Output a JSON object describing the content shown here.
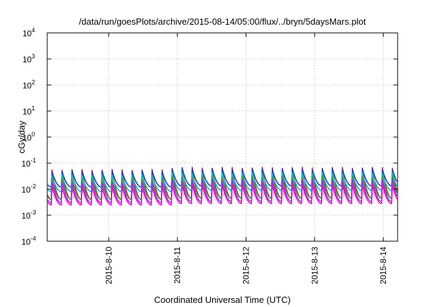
{
  "chart_data": {
    "type": "line",
    "title": "/data/run/goesPlots/archive/2015-08-14/05:00/flux/../bryn/5daysMars.plot",
    "xlabel": "Coordinated Universal Time (UTC)",
    "ylabel": "cGy/day",
    "yscale": "log",
    "ylim": [
      0.0001,
      10000
    ],
    "y_ticks": [
      {
        "base": "10",
        "exp": "-4",
        "value": 0.0001
      },
      {
        "base": "10",
        "exp": "-3",
        "value": 0.001
      },
      {
        "base": "10",
        "exp": "-2",
        "value": 0.01
      },
      {
        "base": "10",
        "exp": "-1",
        "value": 0.1
      },
      {
        "base": "10",
        "exp": "0",
        "value": 1
      },
      {
        "base": "10",
        "exp": "1",
        "value": 10
      },
      {
        "base": "10",
        "exp": "2",
        "value": 100
      },
      {
        "base": "10",
        "exp": "3",
        "value": 1000
      },
      {
        "base": "10",
        "exp": "4",
        "value": 10000
      }
    ],
    "x_range_days": [
      "2015-08-09T02:30",
      "2015-08-14T05:00"
    ],
    "x_ticks": [
      {
        "label": "2015-8-10",
        "date": "2015-08-10T00:00"
      },
      {
        "label": "2015-8-11",
        "date": "2015-08-11T00:00"
      },
      {
        "label": "2015-8-12",
        "date": "2015-08-12T00:00"
      },
      {
        "label": "2015-8-13",
        "date": "2015-08-13T00:00"
      },
      {
        "label": "2015-8-14",
        "date": "2015-08-14T00:00"
      }
    ],
    "grid": true,
    "pattern": {
      "description": "sawtooth: sharp rise then gradual decay, ~7 cycles per day",
      "cycle_hours": 3.5
    },
    "series": [
      {
        "color": "#d62728",
        "peak": 0.055,
        "trough": 0.004,
        "peak_boost_day2_to_4": 1.2
      },
      {
        "color": "#1f3fbf",
        "peak": 0.05,
        "trough": 0.012,
        "peak_boost_day2_to_4": 1.2
      },
      {
        "color": "#00bcd4",
        "peak": 0.035,
        "trough": 0.008,
        "peak_boost_day2_to_4": 1.2
      },
      {
        "color": "#2ca02c",
        "peak": 0.025,
        "trough": 0.004,
        "peak_boost_day2_to_4": 1.2
      },
      {
        "color": "#9b30ff",
        "peak": 0.018,
        "trough": 0.003,
        "peak_boost_day2_to_4": 1.2
      },
      {
        "color": "#ff00cc",
        "peak": 0.012,
        "trough": 0.0025,
        "peak_boost_day2_to_4": 1.2
      }
    ]
  }
}
